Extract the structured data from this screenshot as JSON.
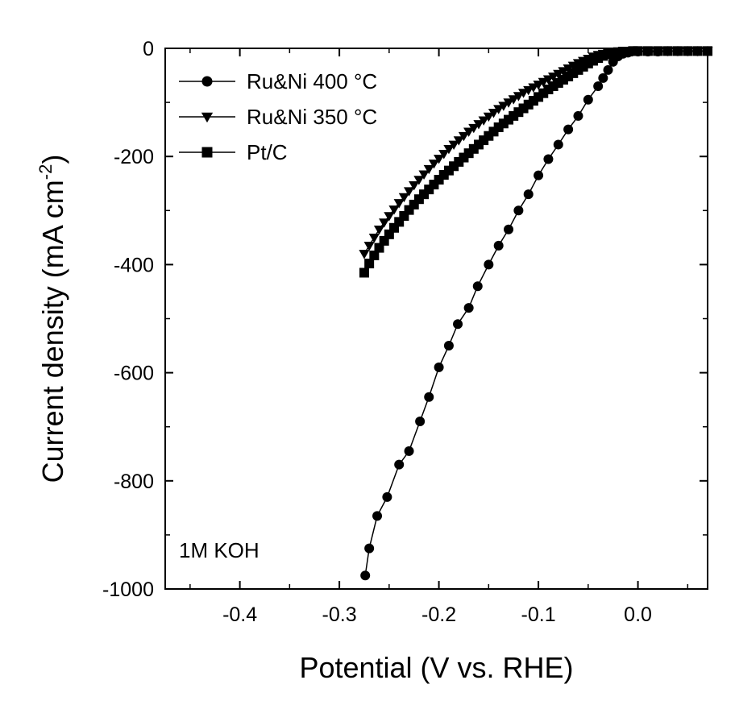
{
  "chart_data": {
    "type": "line",
    "title": "",
    "xlabel": "Potential (V vs. RHE)",
    "ylabel_main": "Current density (mA cm",
    "ylabel_sup": "-2",
    "ylabel_close": ")",
    "xlim": [
      -0.475,
      0.07
    ],
    "ylim": [
      -1000,
      0
    ],
    "xticks": [
      -0.4,
      -0.3,
      -0.2,
      -0.1,
      0.0
    ],
    "xtick_labels": [
      "-0.4",
      "-0.3",
      "-0.2",
      "-0.1",
      "0.0"
    ],
    "yticks": [
      0,
      -200,
      -400,
      -600,
      -800,
      -1000
    ],
    "ytick_labels": [
      "0",
      "-200",
      "-400",
      "-600",
      "-800",
      "-1000"
    ],
    "grid": false,
    "legend_position": "top-left",
    "annotation": "1M KOH",
    "series": [
      {
        "name": "Ru&Ni 400 °C",
        "marker": "circle",
        "color": "#000000",
        "x": [
          -0.274,
          -0.27,
          -0.262,
          -0.252,
          -0.24,
          -0.23,
          -0.219,
          -0.21,
          -0.2,
          -0.19,
          -0.181,
          -0.17,
          -0.161,
          -0.15,
          -0.14,
          -0.13,
          -0.12,
          -0.11,
          -0.1,
          -0.09,
          -0.08,
          -0.07,
          -0.06,
          -0.05,
          -0.04,
          -0.035,
          -0.03,
          -0.025,
          -0.02,
          -0.015,
          -0.01,
          0.0,
          0.01,
          0.02,
          0.03,
          0.04,
          0.05,
          0.06,
          0.07
        ],
        "y": [
          -975,
          -925,
          -865,
          -830,
          -770,
          -745,
          -690,
          -645,
          -590,
          -550,
          -510,
          -480,
          -440,
          -400,
          -365,
          -335,
          -300,
          -270,
          -235,
          -205,
          -178,
          -150,
          -125,
          -95,
          -70,
          -55,
          -40,
          -25,
          -15,
          -10,
          -8,
          -6,
          -6,
          -6,
          -5,
          -5,
          -5,
          -5,
          -5
        ]
      },
      {
        "name": "Ru&Ni 350 °C",
        "marker": "triangle-down",
        "color": "#000000",
        "x": [
          -0.275,
          -0.27,
          -0.265,
          -0.26,
          -0.255,
          -0.25,
          -0.245,
          -0.24,
          -0.235,
          -0.23,
          -0.225,
          -0.22,
          -0.215,
          -0.21,
          -0.205,
          -0.2,
          -0.195,
          -0.19,
          -0.185,
          -0.18,
          -0.175,
          -0.17,
          -0.165,
          -0.16,
          -0.155,
          -0.15,
          -0.145,
          -0.14,
          -0.135,
          -0.13,
          -0.125,
          -0.12,
          -0.115,
          -0.11,
          -0.105,
          -0.1,
          -0.095,
          -0.09,
          -0.085,
          -0.08,
          -0.075,
          -0.07,
          -0.065,
          -0.06,
          -0.055,
          -0.05,
          -0.045,
          -0.04,
          -0.035,
          -0.03,
          -0.025,
          -0.02,
          -0.015,
          -0.01,
          -0.005,
          0.0,
          0.01,
          0.02,
          0.03,
          0.04,
          0.05,
          0.06,
          0.07
        ],
        "y": [
          -380,
          -365,
          -350,
          -335,
          -322,
          -310,
          -298,
          -286,
          -275,
          -264,
          -253,
          -243,
          -233,
          -223,
          -213,
          -204,
          -195,
          -186,
          -178,
          -170,
          -162,
          -154,
          -147,
          -140,
          -133,
          -126,
          -119,
          -112,
          -106,
          -100,
          -94,
          -88,
          -82,
          -77,
          -72,
          -67,
          -62,
          -57,
          -52,
          -47,
          -42,
          -37,
          -32,
          -27,
          -23,
          -19,
          -15,
          -12,
          -10,
          -8,
          -7,
          -6,
          -5,
          -5,
          -5,
          -5,
          -5,
          -5,
          -5,
          -5,
          -5,
          -5,
          -5
        ]
      },
      {
        "name": "Pt/C",
        "marker": "square",
        "color": "#000000",
        "x": [
          -0.275,
          -0.27,
          -0.265,
          -0.26,
          -0.255,
          -0.25,
          -0.245,
          -0.24,
          -0.235,
          -0.23,
          -0.225,
          -0.22,
          -0.215,
          -0.21,
          -0.205,
          -0.2,
          -0.195,
          -0.19,
          -0.185,
          -0.18,
          -0.175,
          -0.17,
          -0.165,
          -0.16,
          -0.155,
          -0.15,
          -0.145,
          -0.14,
          -0.135,
          -0.13,
          -0.125,
          -0.12,
          -0.115,
          -0.11,
          -0.105,
          -0.1,
          -0.095,
          -0.09,
          -0.085,
          -0.08,
          -0.075,
          -0.07,
          -0.065,
          -0.06,
          -0.055,
          -0.05,
          -0.045,
          -0.04,
          -0.035,
          -0.03,
          -0.025,
          -0.02,
          -0.015,
          -0.01,
          -0.005,
          0.0,
          0.01,
          0.02,
          0.03,
          0.04,
          0.05,
          0.06,
          0.07
        ],
        "y": [
          -415,
          -398,
          -383,
          -369,
          -356,
          -344,
          -332,
          -321,
          -310,
          -299,
          -289,
          -279,
          -270,
          -261,
          -252,
          -243,
          -234,
          -226,
          -218,
          -210,
          -202,
          -194,
          -186,
          -178,
          -170,
          -162,
          -154,
          -146,
          -139,
          -132,
          -125,
          -118,
          -111,
          -104,
          -97,
          -90,
          -83,
          -76,
          -70,
          -64,
          -58,
          -52,
          -46,
          -40,
          -34,
          -28,
          -23,
          -18,
          -14,
          -11,
          -9,
          -7,
          -6,
          -6,
          -5,
          -5,
          -5,
          -5,
          -5,
          -5,
          -5,
          -5,
          -5
        ]
      }
    ]
  }
}
